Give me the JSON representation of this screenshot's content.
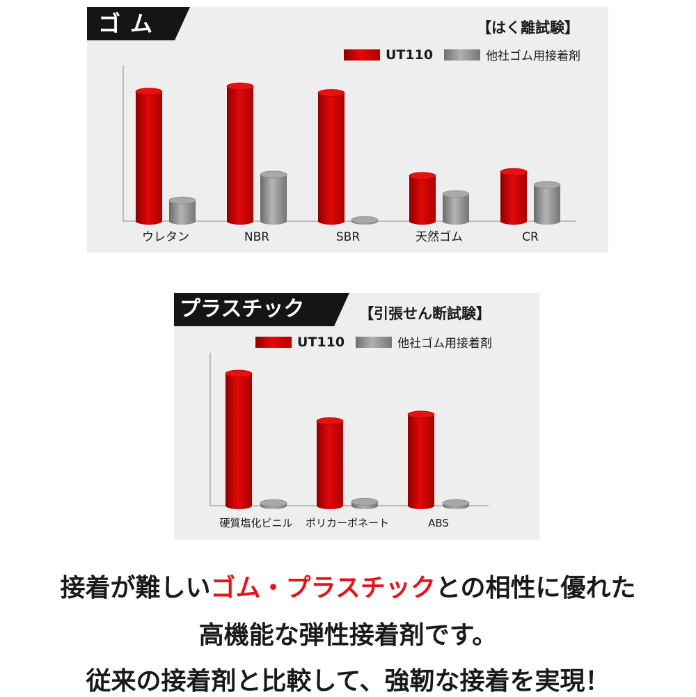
{
  "colors": {
    "ut110": "#e20808",
    "other": "#9a9a9a",
    "highlight": "#e3141b",
    "tab": "#151515",
    "panel": "#eeeeee"
  },
  "rubber": {
    "tab_label": "ゴム",
    "test_name": "【はく離試験】",
    "legend": {
      "ut110": "UT110",
      "other": "他社ゴム用接着剤"
    }
  },
  "plastic": {
    "tab_label": "プラスチック",
    "test_name": "【引張せん断試験】",
    "legend": {
      "ut110": "UT110",
      "other": "他社ゴム用接着剤"
    }
  },
  "chart_data": [
    {
      "type": "bar",
      "categories": [
        "ウレタン",
        "NBR",
        "SBR",
        "天然ゴム",
        "CR"
      ],
      "series": [
        {
          "name": "UT110",
          "values": [
            100,
            104,
            99,
            35,
            38
          ]
        },
        {
          "name": "他社ゴム用接着剤",
          "values": [
            16,
            36,
            1,
            21,
            28
          ]
        }
      ],
      "title": "【はく離試験】",
      "xlabel": "",
      "ylabel": "",
      "ylim": [
        0,
        110
      ],
      "grid": false,
      "legend": "top-right"
    },
    {
      "type": "bar",
      "categories": [
        "硬質塩化ビニル",
        "ポリカーボネート",
        "ABS"
      ],
      "series": [
        {
          "name": "UT110",
          "values": [
            100,
            64,
            69
          ]
        },
        {
          "name": "他社ゴム用接着剤",
          "values": [
            2,
            3,
            2
          ]
        }
      ],
      "title": "【引張せん断試験】",
      "xlabel": "",
      "ylabel": "",
      "ylim": [
        0,
        110
      ],
      "grid": false,
      "legend": "top-right"
    }
  ],
  "caption": {
    "line1_a": "接着が難しい",
    "line1_b": "ゴム・プラスチック",
    "line1_c": "との相性に優れた",
    "line2": "高機能な弾性接着剤です。",
    "line3": "従来の接着剤と比較して、強靭な接着を実現！"
  }
}
